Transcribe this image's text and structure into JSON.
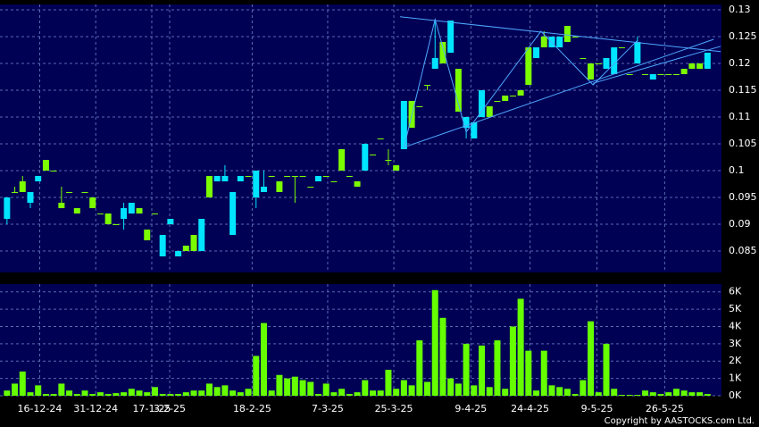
{
  "chart_data": [
    {
      "type": "candlestick",
      "up_color": "#7cfc00",
      "down_color": "#00e5ff",
      "grid": true,
      "ylim": [
        0.081,
        0.131
      ],
      "yticks": [
        0.085,
        0.09,
        0.095,
        0.1,
        0.105,
        0.11,
        0.115,
        0.12,
        0.125,
        0.13
      ],
      "xlim": [
        -0.9,
        91.8
      ],
      "xticks": [
        {
          "value": 4.2,
          "label": "16-12-24"
        },
        {
          "value": 11.4,
          "label": "31-12-24"
        },
        {
          "value": 18.6,
          "label": "17-1-25"
        },
        {
          "value": 20.9,
          "label": "3-2-25"
        },
        {
          "value": 31.5,
          "label": "18-2-25"
        },
        {
          "value": 41.2,
          "label": "7-3-25"
        },
        {
          "value": 49.7,
          "label": "25-3-25"
        },
        {
          "value": 59.6,
          "label": "9-4-25"
        },
        {
          "value": 67.2,
          "label": "24-4-25"
        },
        {
          "value": 75.8,
          "label": "9-5-25"
        },
        {
          "value": 84.5,
          "label": "26-5-25"
        }
      ],
      "open": [
        0.095,
        0.096,
        0.096,
        0.096,
        0.099,
        0.1,
        0.1,
        0.093,
        0.096,
        0.092,
        0.096,
        0.093,
        0.092,
        0.09,
        0.09,
        0.093,
        0.094,
        0.092,
        0.087,
        0.092,
        0.088,
        0.091,
        0.085,
        0.085,
        0.085,
        0.091,
        0.095,
        0.099,
        0.099,
        0.096,
        0.099,
        0.099,
        0.1,
        0.097,
        0.099,
        0.096,
        0.099,
        0.099,
        0.099,
        0.097,
        0.099,
        0.099,
        0.098,
        0.1,
        0.099,
        0.097,
        0.105,
        0.103,
        0.106,
        0.102,
        0.1,
        0.113,
        0.108,
        0.112,
        0.116,
        0.121,
        0.12,
        0.128,
        0.111,
        0.11,
        0.109,
        0.115,
        0.11,
        0.113,
        0.113,
        0.114,
        0.114,
        0.116,
        0.123,
        0.123,
        0.125,
        0.125,
        0.124,
        0.125,
        0.121,
        0.117,
        0.12,
        0.121,
        0.123,
        0.123,
        0.118,
        0.124,
        0.118,
        0.118,
        0.118,
        0.118,
        0.118,
        0.118,
        0.119,
        0.119,
        0.122
      ],
      "high": [
        0.095,
        0.097,
        0.099,
        0.096,
        0.099,
        0.102,
        0.1,
        0.097,
        0.096,
        0.093,
        0.096,
        0.095,
        0.092,
        0.092,
        0.09,
        0.094,
        0.094,
        0.093,
        0.089,
        0.092,
        0.088,
        0.091,
        0.085,
        0.086,
        0.088,
        0.091,
        0.099,
        0.099,
        0.101,
        0.096,
        0.099,
        0.099,
        0.1,
        0.1,
        0.099,
        0.098,
        0.099,
        0.099,
        0.099,
        0.097,
        0.099,
        0.099,
        0.098,
        0.104,
        0.099,
        0.098,
        0.105,
        0.103,
        0.106,
        0.104,
        0.101,
        0.113,
        0.113,
        0.112,
        0.116,
        0.128,
        0.124,
        0.128,
        0.119,
        0.11,
        0.109,
        0.115,
        0.112,
        0.113,
        0.114,
        0.114,
        0.115,
        0.123,
        0.123,
        0.126,
        0.125,
        0.125,
        0.127,
        0.125,
        0.121,
        0.12,
        0.12,
        0.121,
        0.123,
        0.123,
        0.118,
        0.125,
        0.118,
        0.118,
        0.118,
        0.118,
        0.118,
        0.119,
        0.12,
        0.12,
        0.122
      ],
      "low": [
        0.09,
        0.096,
        0.096,
        0.093,
        0.098,
        0.1,
        0.1,
        0.093,
        0.096,
        0.092,
        0.096,
        0.093,
        0.092,
        0.09,
        0.09,
        0.089,
        0.092,
        0.092,
        0.087,
        0.092,
        0.084,
        0.09,
        0.084,
        0.085,
        0.085,
        0.085,
        0.095,
        0.098,
        0.098,
        0.088,
        0.098,
        0.099,
        0.093,
        0.096,
        0.099,
        0.096,
        0.099,
        0.094,
        0.099,
        0.097,
        0.098,
        0.099,
        0.098,
        0.1,
        0.099,
        0.097,
        0.1,
        0.103,
        0.106,
        0.101,
        0.1,
        0.104,
        0.108,
        0.112,
        0.115,
        0.119,
        0.12,
        0.122,
        0.111,
        0.106,
        0.106,
        0.11,
        0.11,
        0.113,
        0.113,
        0.114,
        0.114,
        0.116,
        0.121,
        0.123,
        0.123,
        0.123,
        0.124,
        0.125,
        0.121,
        0.117,
        0.12,
        0.119,
        0.118,
        0.123,
        0.118,
        0.12,
        0.118,
        0.117,
        0.118,
        0.118,
        0.118,
        0.118,
        0.119,
        0.119,
        0.119
      ],
      "close": [
        0.091,
        0.096,
        0.098,
        0.094,
        0.098,
        0.102,
        0.1,
        0.094,
        0.096,
        0.093,
        0.096,
        0.095,
        0.092,
        0.092,
        0.09,
        0.091,
        0.092,
        0.093,
        0.089,
        0.092,
        0.084,
        0.09,
        0.084,
        0.086,
        0.088,
        0.085,
        0.099,
        0.098,
        0.098,
        0.088,
        0.098,
        0.099,
        0.095,
        0.096,
        0.099,
        0.098,
        0.099,
        0.099,
        0.099,
        0.097,
        0.098,
        0.099,
        0.098,
        0.104,
        0.099,
        0.098,
        0.1,
        0.103,
        0.106,
        0.102,
        0.101,
        0.104,
        0.113,
        0.112,
        0.116,
        0.119,
        0.124,
        0.122,
        0.119,
        0.108,
        0.106,
        0.11,
        0.112,
        0.113,
        0.114,
        0.114,
        0.115,
        0.123,
        0.121,
        0.125,
        0.123,
        0.123,
        0.127,
        0.125,
        0.121,
        0.12,
        0.12,
        0.119,
        0.118,
        0.123,
        0.118,
        0.12,
        0.118,
        0.117,
        0.118,
        0.118,
        0.118,
        0.119,
        0.12,
        0.12,
        0.119
      ],
      "trend_color": "#4fa8ff",
      "trendlines": [
        {
          "x": [
            50.5,
            91.7
          ],
          "y": [
            0.1287,
            0.1222
          ]
        },
        {
          "x": [
            50.9,
            90.8
          ],
          "y": [
            0.1043,
            0.1245
          ]
        },
        {
          "x": [
            75.3,
            91.7
          ],
          "y": [
            0.1163,
            0.1232
          ]
        },
        {
          "x": [
            51,
            55,
            59,
            68.6,
            75.3,
            81
          ],
          "y": [
            0.1043,
            0.1282,
            0.1072,
            0.126,
            0.116,
            0.1243
          ]
        }
      ]
    },
    {
      "type": "bar",
      "color": "#66ff00",
      "grid": true,
      "ylim": [
        0,
        6.45
      ],
      "yticks": [
        {
          "value": 0,
          "label": "0K"
        },
        {
          "value": 1,
          "label": "1K"
        },
        {
          "value": 2,
          "label": "2K"
        },
        {
          "value": 3,
          "label": "3K"
        },
        {
          "value": 4,
          "label": "4K"
        },
        {
          "value": 5,
          "label": "5K"
        },
        {
          "value": 6,
          "label": "6K"
        }
      ],
      "values": [
        0.3,
        0.7,
        1.4,
        0.2,
        0.6,
        0.1,
        0.1,
        0.7,
        0.3,
        0.1,
        0.3,
        0.1,
        0.2,
        0.1,
        0.15,
        0.2,
        0.4,
        0.3,
        0.2,
        0.5,
        0.1,
        0.1,
        0.1,
        0.2,
        0.3,
        0.3,
        0.7,
        0.5,
        0.6,
        0.3,
        0.2,
        0.4,
        2.3,
        4.2,
        0.3,
        1.2,
        1.0,
        1.1,
        0.9,
        0.8,
        0.1,
        0.7,
        0.2,
        0.4,
        0.1,
        0.2,
        0.9,
        0.3,
        0.3,
        1.5,
        0.4,
        0.9,
        0.6,
        3.2,
        0.8,
        6.1,
        4.5,
        1.0,
        0.7,
        3.0,
        0.6,
        2.9,
        0.5,
        3.2,
        0.4,
        4.0,
        5.6,
        2.6,
        0.3,
        2.6,
        0.6,
        0.5,
        0.4,
        0.1,
        0.9,
        4.3,
        0.2,
        3.0,
        0.4,
        0.05,
        0.05,
        0.05,
        0.3,
        0.2,
        0.1,
        0.2,
        0.4,
        0.3,
        0.2,
        0.2,
        0.1
      ]
    }
  ],
  "copyright": "Copyright by AASTOCKS.com Ltd."
}
